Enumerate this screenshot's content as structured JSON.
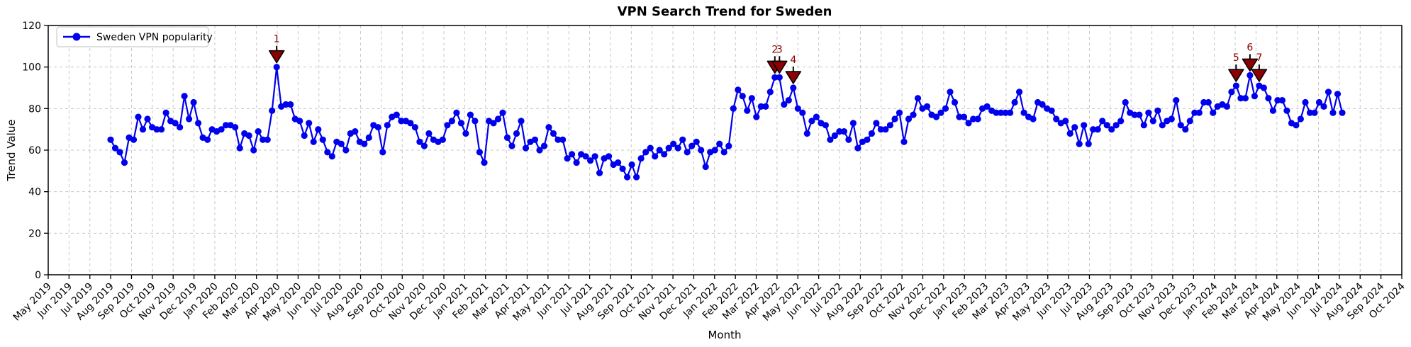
{
  "title": "VPN Search Trend for Sweden",
  "x_axis_label": "Month",
  "y_axis_label": "Trend Value",
  "legend": {
    "position": "upper-left",
    "items": [
      {
        "label": "Sweden VPN popularity",
        "marker": "circle",
        "color": "#0000ee"
      }
    ]
  },
  "chart_data": {
    "type": "line",
    "title": "VPN Search Trend for Sweden",
    "xlabel": "Month",
    "ylabel": "Trend Value",
    "ylim": [
      0,
      120
    ],
    "y_ticks": [
      0,
      20,
      40,
      60,
      80,
      100,
      120
    ],
    "grid": true,
    "grid_style": "dashed",
    "legend_position": "upper left",
    "x_tick_labels": [
      "May 2019",
      "Jun 2019",
      "Jul 2019",
      "Aug 2019",
      "Sep 2019",
      "Oct 2019",
      "Nov 2019",
      "Dec 2019",
      "Jan 2020",
      "Feb 2020",
      "Mar 2020",
      "Apr 2020",
      "May 2020",
      "Jun 2020",
      "Jul 2020",
      "Aug 2020",
      "Sep 2020",
      "Oct 2020",
      "Nov 2020",
      "Dec 2020",
      "Jan 2021",
      "Feb 2021",
      "Mar 2021",
      "Apr 2021",
      "May 2021",
      "Jun 2021",
      "Jul 2021",
      "Aug 2021",
      "Sep 2021",
      "Oct 2021",
      "Nov 2021",
      "Dec 2021",
      "Jan 2022",
      "Feb 2022",
      "Mar 2022",
      "Apr 2022",
      "May 2022",
      "Jun 2022",
      "Jul 2022",
      "Aug 2022",
      "Sep 2022",
      "Oct 2022",
      "Nov 2022",
      "Dec 2022",
      "Jan 2023",
      "Feb 2023",
      "Mar 2023",
      "Apr 2023",
      "May 2023",
      "Jun 2023",
      "Jul 2023",
      "Aug 2023",
      "Sep 2023",
      "Oct 2023",
      "Nov 2023",
      "Dec 2023",
      "Jan 2024",
      "Feb 2024",
      "Mar 2024",
      "Apr 2024",
      "May 2024",
      "Jun 2024",
      "Jul 2024",
      "Aug 2024",
      "Sep 2024",
      "Oct 2024"
    ],
    "series": [
      {
        "name": "Sweden VPN popularity",
        "color": "#0000ee",
        "marker": "o",
        "cadence": "weekly",
        "values": [
          65,
          61,
          59,
          54,
          66,
          65,
          76,
          70,
          75,
          71,
          70,
          70,
          78,
          74,
          73,
          71,
          86,
          75,
          83,
          73,
          66,
          65,
          70,
          69,
          70,
          72,
          72,
          71,
          61,
          68,
          67,
          60,
          69,
          65,
          65,
          79,
          100,
          81,
          82,
          82,
          75,
          74,
          67,
          73,
          64,
          70,
          65,
          59,
          57,
          64,
          63,
          60,
          68,
          69,
          64,
          63,
          66,
          72,
          71,
          59,
          72,
          76,
          77,
          74,
          74,
          73,
          71,
          64,
          62,
          68,
          65,
          64,
          65,
          72,
          74,
          78,
          73,
          68,
          77,
          74,
          59,
          54,
          74,
          73,
          75,
          78,
          66,
          62,
          68,
          74,
          61,
          64,
          65,
          60,
          62,
          71,
          68,
          65,
          65,
          56,
          58,
          54,
          58,
          57,
          55,
          57,
          49,
          56,
          57,
          53,
          54,
          51,
          47,
          53,
          47,
          56,
          59,
          61,
          57,
          60,
          58,
          61,
          63,
          61,
          65,
          59,
          62,
          64,
          60,
          52,
          59,
          60,
          63,
          59,
          62,
          80,
          89,
          86,
          79,
          85,
          76,
          81,
          81,
          88,
          95,
          95,
          82,
          84,
          90,
          80,
          78,
          68,
          74,
          76,
          73,
          72,
          65,
          67,
          69,
          69,
          65,
          73,
          61,
          64,
          65,
          68,
          73,
          70,
          70,
          72,
          75,
          78,
          64,
          75,
          77,
          85,
          80,
          81,
          77,
          76,
          78,
          80,
          88,
          83,
          76,
          76,
          73,
          75,
          75,
          80,
          81,
          79,
          78,
          78,
          78,
          78,
          83,
          88,
          78,
          76,
          75,
          83,
          82,
          80,
          79,
          75,
          73,
          74,
          68,
          71,
          63,
          72,
          63,
          70,
          70,
          74,
          72,
          70,
          72,
          74,
          83,
          78,
          77,
          77,
          72,
          78,
          74,
          79,
          72,
          74,
          75,
          84,
          72,
          70,
          74,
          78,
          78,
          83,
          83,
          78,
          81,
          82,
          81,
          88,
          91,
          85,
          85,
          96,
          86,
          91,
          90,
          85,
          79,
          84,
          84,
          79,
          73,
          72,
          75,
          83,
          78,
          78,
          83,
          81,
          88,
          78,
          87,
          78
        ]
      }
    ],
    "annotations": [
      {
        "label": "1",
        "index": 36,
        "value": 100
      },
      {
        "label": "2",
        "index": 144,
        "value": 95
      },
      {
        "label": "3",
        "index": 145,
        "value": 95
      },
      {
        "label": "4",
        "index": 148,
        "value": 90
      },
      {
        "label": "5",
        "index": 244,
        "value": 91
      },
      {
        "label": "6",
        "index": 247,
        "value": 96
      },
      {
        "label": "7",
        "index": 249,
        "value": 91
      }
    ],
    "annotation_marker": "triangle-down",
    "annotation_color": "#8b0000"
  },
  "colors": {
    "line": "#0000ee",
    "annotation": "#8b0000",
    "grid": "#c7c7c7",
    "axis": "#000000",
    "background": "#ffffff",
    "legend_border": "#cccccc"
  }
}
